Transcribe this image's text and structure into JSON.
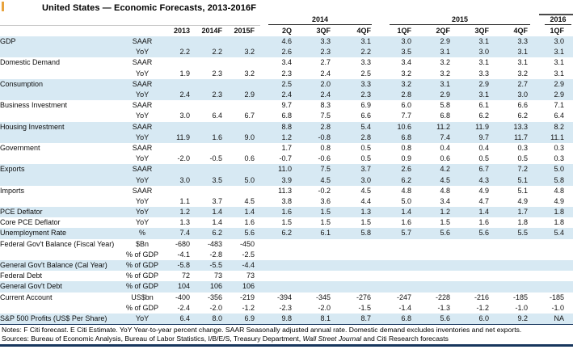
{
  "title": "United States — Economic Forecasts, 2013-2016F",
  "colors": {
    "row_stripe": "#d7e9f3",
    "rule_navy": "#17365d",
    "accent_tick_orange": "#e8a33d"
  },
  "table": {
    "year_groups": [
      {
        "label": "2014",
        "span": 3
      },
      {
        "label": "2015",
        "span": 4
      },
      {
        "label": "2016",
        "span": 1
      }
    ],
    "annual_headers": [
      "2013",
      "2014F",
      "2015F"
    ],
    "quarter_headers": [
      "2Q",
      "3QF",
      "4QF",
      "1QF",
      "2QF",
      "3QF",
      "4QF",
      "1QF"
    ],
    "rows": [
      {
        "label": "GDP",
        "unit": "SAAR",
        "shade": true,
        "values": [
          "",
          "",
          "",
          "4.6",
          "3.3",
          "3.1",
          "3.0",
          "2.9",
          "3.1",
          "3.3",
          "3.0"
        ]
      },
      {
        "label": "",
        "unit": "YoY",
        "shade": true,
        "values": [
          "2.2",
          "2.2",
          "3.2",
          "2.6",
          "2.3",
          "2.2",
          "3.5",
          "3.1",
          "3.0",
          "3.1",
          "3.1"
        ]
      },
      {
        "label": "Domestic Demand",
        "unit": "SAAR",
        "shade": false,
        "values": [
          "",
          "",
          "",
          "3.4",
          "2.7",
          "3.3",
          "3.4",
          "3.2",
          "3.1",
          "3.1",
          "3.1"
        ]
      },
      {
        "label": "",
        "unit": "YoY",
        "shade": false,
        "values": [
          "1.9",
          "2.3",
          "3.2",
          "2.3",
          "2.4",
          "2.5",
          "3.2",
          "3.2",
          "3.3",
          "3.2",
          "3.1"
        ]
      },
      {
        "label": "Consumption",
        "unit": "SAAR",
        "shade": true,
        "values": [
          "",
          "",
          "",
          "2.5",
          "2.0",
          "3.3",
          "3.2",
          "3.1",
          "2.9",
          "2.7",
          "2.9"
        ]
      },
      {
        "label": "",
        "unit": "YoY",
        "shade": true,
        "values": [
          "2.4",
          "2.3",
          "2.9",
          "2.4",
          "2.4",
          "2.3",
          "2.8",
          "2.9",
          "3.1",
          "3.0",
          "2.9"
        ]
      },
      {
        "label": "Business Investment",
        "unit": "SAAR",
        "shade": false,
        "values": [
          "",
          "",
          "",
          "9.7",
          "8.3",
          "6.9",
          "6.0",
          "5.8",
          "6.1",
          "6.6",
          "7.1"
        ]
      },
      {
        "label": "",
        "unit": "YoY",
        "shade": false,
        "values": [
          "3.0",
          "6.4",
          "6.7",
          "6.8",
          "7.5",
          "6.6",
          "7.7",
          "6.8",
          "6.2",
          "6.2",
          "6.4"
        ]
      },
      {
        "label": "Housing Investment",
        "unit": "SAAR",
        "shade": true,
        "values": [
          "",
          "",
          "",
          "8.8",
          "2.8",
          "5.4",
          "10.6",
          "11.2",
          "11.9",
          "13.3",
          "8.2"
        ]
      },
      {
        "label": "",
        "unit": "YoY",
        "shade": true,
        "values": [
          "11.9",
          "1.6",
          "9.0",
          "1.2",
          "-0.8",
          "2.8",
          "6.8",
          "7.4",
          "9.7",
          "11.7",
          "11.1"
        ]
      },
      {
        "label": "Government",
        "unit": "SAAR",
        "shade": false,
        "values": [
          "",
          "",
          "",
          "1.7",
          "0.8",
          "0.5",
          "0.8",
          "0.4",
          "0.4",
          "0.3",
          "0.3"
        ]
      },
      {
        "label": "",
        "unit": "YoY",
        "shade": false,
        "values": [
          "-2.0",
          "-0.5",
          "0.6",
          "-0.7",
          "-0.6",
          "0.5",
          "0.9",
          "0.6",
          "0.5",
          "0.5",
          "0.3"
        ]
      },
      {
        "label": "Exports",
        "unit": "SAAR",
        "shade": true,
        "values": [
          "",
          "",
          "",
          "11.0",
          "7.5",
          "3.7",
          "2.6",
          "4.2",
          "6.7",
          "7.2",
          "5.0"
        ]
      },
      {
        "label": "",
        "unit": "YoY",
        "shade": true,
        "values": [
          "3.0",
          "3.5",
          "5.0",
          "3.9",
          "4.5",
          "3.0",
          "6.2",
          "4.5",
          "4.3",
          "5.1",
          "5.8"
        ]
      },
      {
        "label": "Imports",
        "unit": "SAAR",
        "shade": false,
        "values": [
          "",
          "",
          "",
          "11.3",
          "-0.2",
          "4.5",
          "4.8",
          "4.8",
          "4.9",
          "5.1",
          "4.8"
        ]
      },
      {
        "label": "",
        "unit": "YoY",
        "shade": false,
        "values": [
          "1.1",
          "3.7",
          "4.5",
          "3.8",
          "3.6",
          "4.4",
          "5.0",
          "3.4",
          "4.7",
          "4.9",
          "4.9"
        ]
      },
      {
        "label": "PCE Deflator",
        "unit": "YoY",
        "shade": true,
        "values": [
          "1.2",
          "1.4",
          "1.4",
          "1.6",
          "1.5",
          "1.3",
          "1.4",
          "1.2",
          "1.4",
          "1.7",
          "1.8"
        ]
      },
      {
        "label": "Core PCE Deflator",
        "unit": "YoY",
        "shade": false,
        "values": [
          "1.3",
          "1.4",
          "1.6",
          "1.5",
          "1.5",
          "1.5",
          "1.6",
          "1.5",
          "1.6",
          "1.8",
          "1.8"
        ]
      },
      {
        "label": "Unemployment Rate",
        "unit": "%",
        "shade": true,
        "values": [
          "7.4",
          "6.2",
          "5.6",
          "6.2",
          "6.1",
          "5.8",
          "5.7",
          "5.6",
          "5.6",
          "5.5",
          "5.4"
        ]
      },
      {
        "label": "Federal Gov't Balance (Fiscal Year)",
        "unit": "$Bn",
        "shade": false,
        "values": [
          "-680",
          "-483",
          "-450",
          "",
          "",
          "",
          "",
          "",
          "",
          "",
          ""
        ]
      },
      {
        "label": "",
        "unit": "% of GDP",
        "shade": false,
        "values": [
          "-4.1",
          "-2.8",
          "-2.5",
          "",
          "",
          "",
          "",
          "",
          "",
          "",
          ""
        ]
      },
      {
        "label": "General Gov't Balance (Cal Year)",
        "unit": "% of GDP",
        "shade": true,
        "values": [
          "-5.8",
          "-5.5",
          "-4.4",
          "",
          "",
          "",
          "",
          "",
          "",
          "",
          ""
        ]
      },
      {
        "label": "Federal Debt",
        "unit": "% of GDP",
        "shade": false,
        "values": [
          "72",
          "73",
          "73",
          "",
          "",
          "",
          "",
          "",
          "",
          "",
          ""
        ]
      },
      {
        "label": "General Gov't Debt",
        "unit": "% of GDP",
        "shade": true,
        "values": [
          "104",
          "106",
          "106",
          "",
          "",
          "",
          "",
          "",
          "",
          "",
          ""
        ]
      },
      {
        "label": "Current Account",
        "unit": "US$bn",
        "shade": false,
        "values": [
          "-400",
          "-356",
          "-219",
          "-394",
          "-345",
          "-276",
          "-247",
          "-228",
          "-216",
          "-185",
          "-185"
        ]
      },
      {
        "label": "",
        "unit": "% of GDP",
        "shade": false,
        "values": [
          "-2.4",
          "-2.0",
          "-1.2",
          "-2.3",
          "-2.0",
          "-1.5",
          "-1.4",
          "-1.3",
          "-1.2",
          "-1.0",
          "-1.0"
        ]
      },
      {
        "label": "S&P 500 Profits (US$ Per Share)",
        "unit": "YoY",
        "shade": true,
        "values": [
          "6.4",
          "8.0",
          "6.9",
          "9.8",
          "8.1",
          "8.7",
          "6.8",
          "5.6",
          "6.0",
          "9.2",
          "NA"
        ]
      }
    ]
  },
  "notes": "Notes: F Citi forecast. E Citi Estimate. YoY Year-to-year percent change. SAAR Seasonally adjusted annual rate. Domestic demand excludes inventories and net exports.",
  "sources": {
    "prefix": "Sources: Bureau of Economic Analysis, Bureau of Labor Statistics, I/B/E/S, Treasury Department, ",
    "italic": "Wall Street Journal",
    "suffix": " and Citi Research forecasts"
  }
}
